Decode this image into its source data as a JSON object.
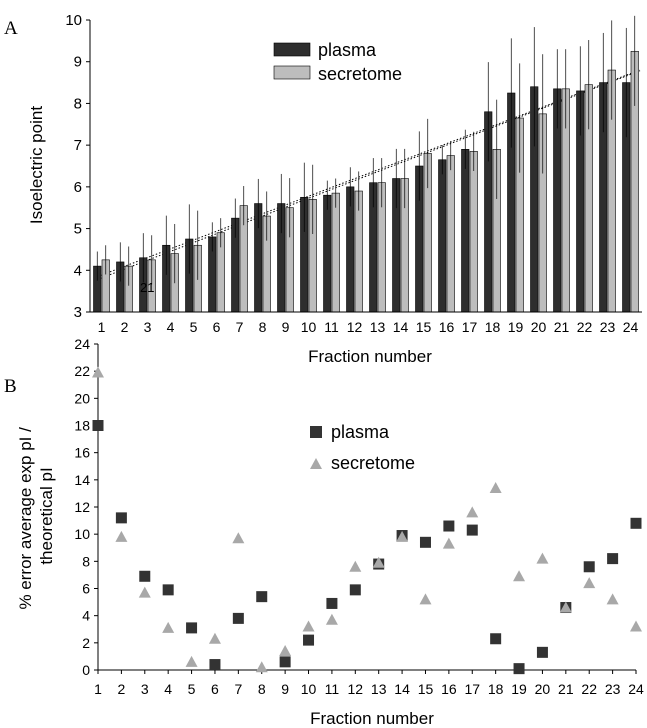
{
  "chart_data": [
    {
      "panel_label": "A",
      "type": "bar",
      "ylabel": "Isoelectric point",
      "xlabel": "Fraction number",
      "ylim": [
        3,
        10
      ],
      "yticks": [
        "3",
        "4",
        "5",
        "6",
        "7",
        "8",
        "9",
        "10"
      ],
      "categories": [
        "1",
        "2",
        "3",
        "4",
        "5",
        "6",
        "7",
        "8",
        "9",
        "10",
        "11",
        "12",
        "13",
        "14",
        "15",
        "16",
        "17",
        "18",
        "19",
        "20",
        "21",
        "22",
        "23",
        "24"
      ],
      "series": [
        {
          "name": "plasma",
          "color": "#2e2e2e",
          "values": [
            4.1,
            4.2,
            4.3,
            4.6,
            4.75,
            4.8,
            5.25,
            5.6,
            5.6,
            5.75,
            5.8,
            6.0,
            6.1,
            6.2,
            6.5,
            6.65,
            6.9,
            7.8,
            8.25,
            8.4,
            8.35,
            8.3,
            8.5,
            8.5
          ]
        },
        {
          "name": "secretome",
          "color": "#bdbdbd",
          "values": [
            4.25,
            4.1,
            4.25,
            4.4,
            4.6,
            4.9,
            5.55,
            5.3,
            5.5,
            5.7,
            5.85,
            5.9,
            6.1,
            6.2,
            6.8,
            6.75,
            6.85,
            6.9,
            7.65,
            7.75,
            8.35,
            8.45,
            8.8,
            9.25
          ]
        }
      ],
      "legend_position": "top-center",
      "annotation": "21",
      "trendlines": true
    },
    {
      "panel_label": "B",
      "type": "scatter",
      "ylabel": "% error average exp pI / theoretical pI",
      "xlabel": "Fraction number",
      "xlim": [
        1,
        24
      ],
      "ylim": [
        0,
        24
      ],
      "yticks": [
        "0",
        "2",
        "4",
        "6",
        "8",
        "10",
        "12",
        "14",
        "16",
        "18",
        "20",
        "22",
        "24"
      ],
      "xticks": [
        "1",
        "2",
        "3",
        "4",
        "5",
        "6",
        "7",
        "8",
        "9",
        "10",
        "11",
        "12",
        "13",
        "14",
        "15",
        "16",
        "17",
        "18",
        "19",
        "20",
        "21",
        "22",
        "23",
        "24"
      ],
      "series": [
        {
          "name": "plasma",
          "marker": "square",
          "color": "#333333",
          "x": [
            1,
            2,
            3,
            4,
            5,
            6,
            7,
            8,
            9,
            10,
            11,
            12,
            13,
            14,
            15,
            16,
            17,
            18,
            19,
            20,
            21,
            22,
            23,
            24
          ],
          "y": [
            18.0,
            11.2,
            6.9,
            5.9,
            3.1,
            0.4,
            3.8,
            5.4,
            0.6,
            2.2,
            4.9,
            5.9,
            7.8,
            9.9,
            9.4,
            10.6,
            10.3,
            2.3,
            0.1,
            1.3,
            4.6,
            7.6,
            8.2,
            10.8
          ]
        },
        {
          "name": "secretome",
          "marker": "triangle",
          "color": "#a8a8a8",
          "x": [
            1,
            2,
            3,
            4,
            5,
            6,
            7,
            8,
            9,
            10,
            11,
            12,
            13,
            14,
            15,
            16,
            17,
            18,
            19,
            20,
            21,
            22,
            23,
            24
          ],
          "y": [
            21.9,
            9.8,
            5.7,
            3.1,
            0.6,
            2.3,
            9.7,
            0.2,
            1.4,
            3.2,
            3.7,
            7.6,
            7.9,
            9.8,
            5.2,
            9.3,
            11.6,
            13.4,
            6.9,
            8.2,
            4.6,
            6.4,
            5.2,
            3.2
          ]
        }
      ],
      "legend_position": "top-center"
    }
  ]
}
